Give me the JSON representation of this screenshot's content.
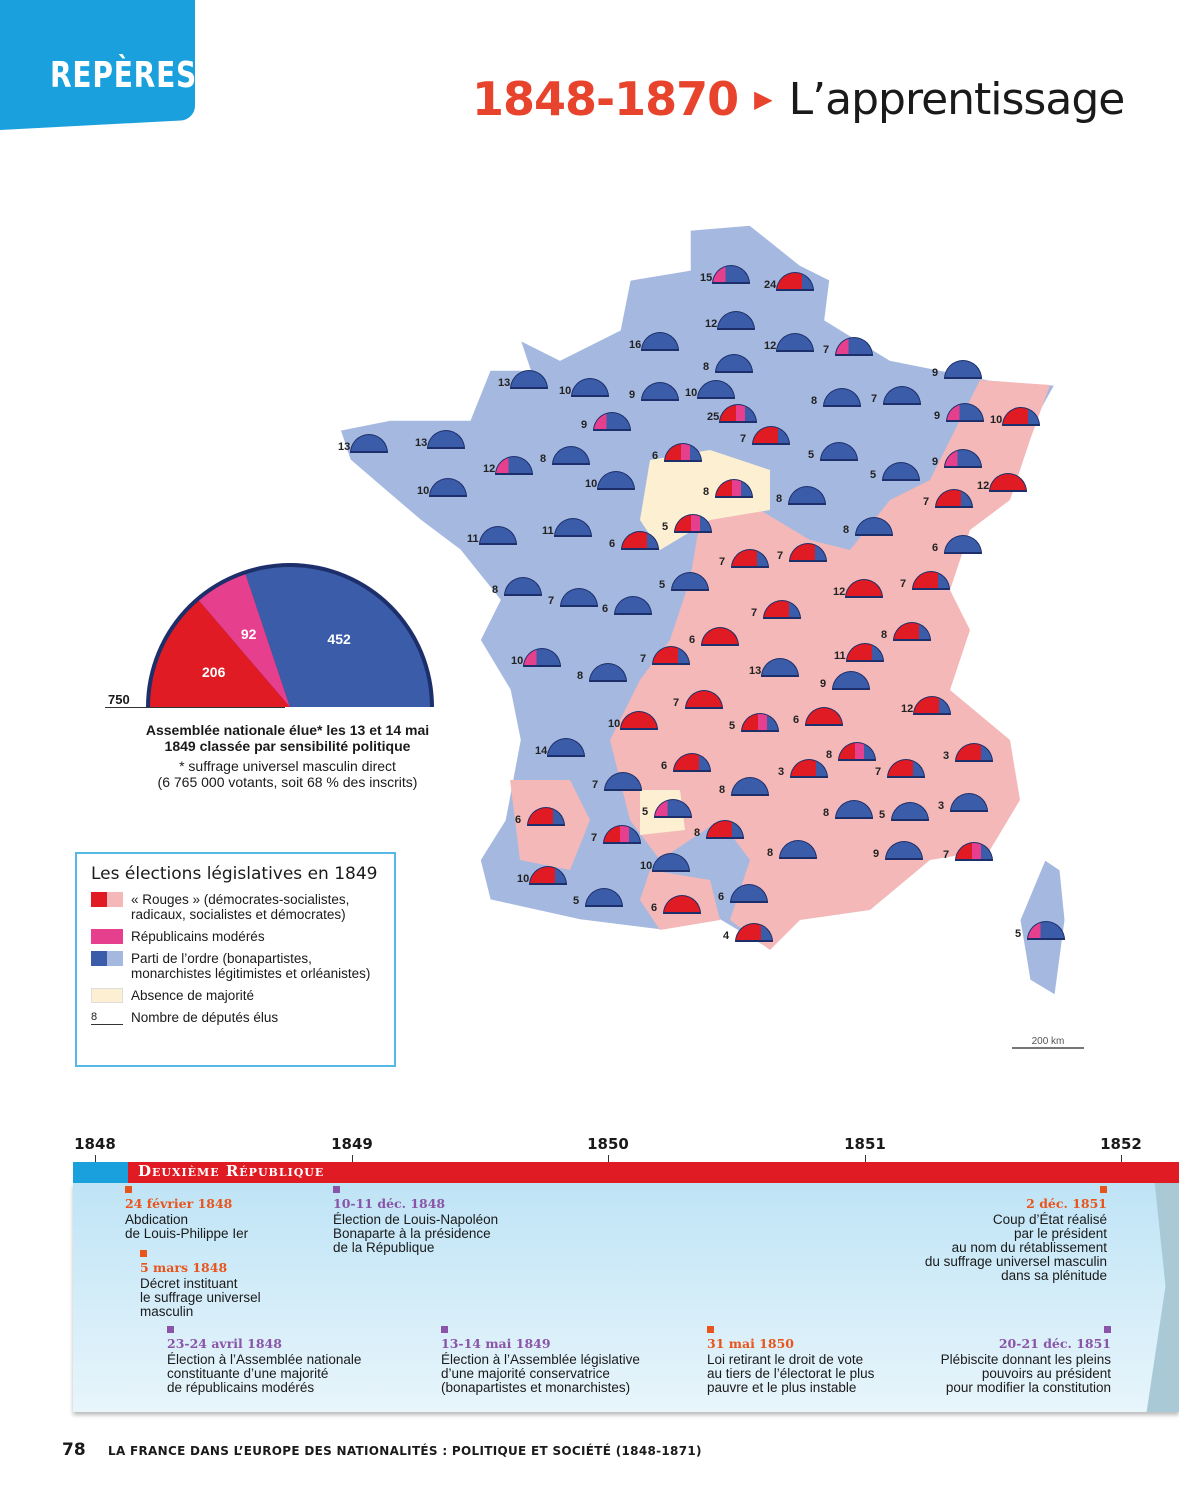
{
  "header": {
    "tag": "REPÈRES",
    "years": "1848-1870",
    "title": "L’apprentissage"
  },
  "assembly_chart": {
    "type": "pie",
    "total": "750",
    "values": [
      {
        "label": "206",
        "value": 206,
        "color": "#e01b24"
      },
      {
        "label": "92",
        "value": 92,
        "color": "#e53f8e"
      },
      {
        "label": "452",
        "value": 452,
        "color": "#3b5ca8"
      }
    ],
    "caption": "Assemblée nationale élue* les 13 et 14 mai 1849 classée par sensibilité politique",
    "note1": "* suffrage universel masculin direct",
    "note2": "(6 765 000 votants, soit 68 % des inscrits)"
  },
  "legend": {
    "title": "Les élections législatives en 1849",
    "items": [
      "« Rouges » (démocrates-socialistes, radicaux, socialistes et démocrates)",
      "Républicains modérés",
      "Parti de l’ordre (bonapartistes, monarchistes légitimistes et orléanistes)",
      "Absence de majorité",
      "Nombre de députés élus"
    ],
    "sample_number": "8"
  },
  "map": {
    "scale": "200 km",
    "seats": [
      "15",
      "24",
      "12",
      "16",
      "8",
      "12",
      "7",
      "13",
      "10",
      "9",
      "10",
      "9",
      "8",
      "7",
      "9",
      "10",
      "25",
      "9",
      "7",
      "13",
      "13",
      "12",
      "8",
      "6",
      "10",
      "5",
      "9",
      "5",
      "12",
      "10",
      "8",
      "8",
      "7",
      "11",
      "11",
      "6",
      "5",
      "8",
      "6",
      "7",
      "7",
      "12",
      "7",
      "8",
      "7",
      "5",
      "6",
      "7",
      "8",
      "10",
      "7",
      "6",
      "8",
      "13",
      "11",
      "9",
      "7",
      "12",
      "10",
      "5",
      "6",
      "14",
      "8",
      "3",
      "6",
      "3",
      "7",
      "7",
      "8",
      "5",
      "8",
      "5",
      "3",
      "6",
      "7",
      "8",
      "10",
      "8",
      "9",
      "7",
      "10",
      "5",
      "6",
      "6",
      "4",
      "5"
    ]
  },
  "timeline": {
    "years": [
      "1848",
      "1849",
      "1850",
      "1851",
      "1852"
    ],
    "period": "Deuxième République",
    "events": [
      {
        "date": "24 février 1848",
        "text": [
          "Abdication",
          "de Louis-Philippe Ier"
        ]
      },
      {
        "date": "5 mars 1848",
        "text": [
          "Décret instituant",
          "le suffrage universel",
          "masculin"
        ]
      },
      {
        "date": "23-24 avril 1848",
        "text": [
          "Élection à l’Assemblée nationale",
          "constituante d’une majorité",
          "de républicains modérés"
        ]
      },
      {
        "date": "10-11 déc. 1848",
        "text": [
          "Élection de Louis-Napoléon",
          "Bonaparte à la présidence",
          "de la République"
        ]
      },
      {
        "date": "13-14 mai 1849",
        "text": [
          "Élection à l’Assemblée législative",
          "d’une majorité conservatrice",
          "(bonapartistes et monarchistes)"
        ]
      },
      {
        "date": "31 mai 1850",
        "text": [
          "Loi retirant le droit de vote",
          "au tiers de l’électorat le plus",
          "pauvre et le plus instable"
        ]
      },
      {
        "date": "2 déc. 1851",
        "text": [
          "Coup d’État réalisé",
          "par le président",
          "au nom du rétablissement",
          "du suffrage universel masculin",
          "dans sa plénitude"
        ]
      },
      {
        "date": "20-21 déc. 1851",
        "text": [
          "Plébiscite donnant les pleins",
          "pouvoirs au président",
          "pour modifier la constitution"
        ]
      }
    ]
  },
  "footer": {
    "page": "78",
    "text": "LA FRANCE DANS L’EUROPE DES NATIONALITÉS : POLITIQUE ET SOCIÉTÉ (1848-1871)"
  }
}
